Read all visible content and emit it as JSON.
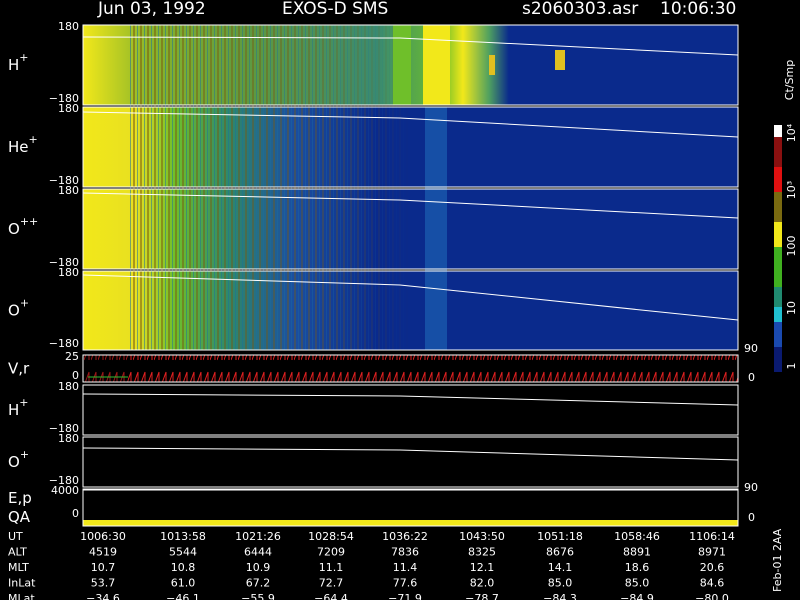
{
  "header": {
    "date": "Jun 03, 1992",
    "instrument": "EXOS-D SMS",
    "file": "s2060303.asr",
    "time": "10:06:30"
  },
  "panels": [
    {
      "label": "H",
      "sup": "+",
      "top": "180",
      "bottom": "−180"
    },
    {
      "label": "He",
      "sup": "+",
      "top": "180",
      "bottom": "−180"
    },
    {
      "label": "O",
      "sup": "++",
      "top": "180",
      "bottom": "−180"
    },
    {
      "label": "O",
      "sup": "+",
      "top": "180",
      "bottom": "−180"
    },
    {
      "label": "V,r",
      "top": "25",
      "bottom": "0",
      "right_top": "90",
      "right_bottom": "0"
    },
    {
      "label": "H",
      "sup": "+",
      "top": "180",
      "bottom": "−180"
    },
    {
      "label": "O",
      "sup": "+",
      "top": "180",
      "bottom": "−180"
    },
    {
      "label": "E,p",
      "top": "4000",
      "bottom": "",
      "right_top": "90",
      "right_bottom": "0"
    },
    {
      "label": "QA",
      "top": "0"
    }
  ],
  "colorbar": {
    "unit": "Ct/Smp",
    "labels": [
      "10⁴",
      "10³",
      "100",
      "10",
      "1"
    ]
  },
  "table": {
    "rows": [
      [
        "UT",
        "1006:30",
        "1013:58",
        "1021:26",
        "1028:54",
        "1036:22",
        "1043:50",
        "1051:18",
        "1058:46",
        "1106:14"
      ],
      [
        "ALT",
        "4519",
        "5544",
        "6444",
        "7209",
        "7836",
        "8325",
        "8676",
        "8891",
        "8971"
      ],
      [
        "MLT",
        "10.7",
        "10.8",
        "10.9",
        "11.1",
        "11.4",
        "12.1",
        "14.1",
        "18.6",
        "20.6"
      ],
      [
        "InLat",
        "53.7",
        "61.0",
        "67.2",
        "72.7",
        "77.6",
        "82.0",
        "85.0",
        "85.0",
        "84.6"
      ],
      [
        "MLat",
        "−34.6",
        "−46.1",
        "−55.9",
        "−64.4",
        "−71.9",
        "−78.7",
        "−84.3",
        "−84.9",
        "−80.0"
      ]
    ]
  },
  "side_note": "Feb-01 2AA"
}
